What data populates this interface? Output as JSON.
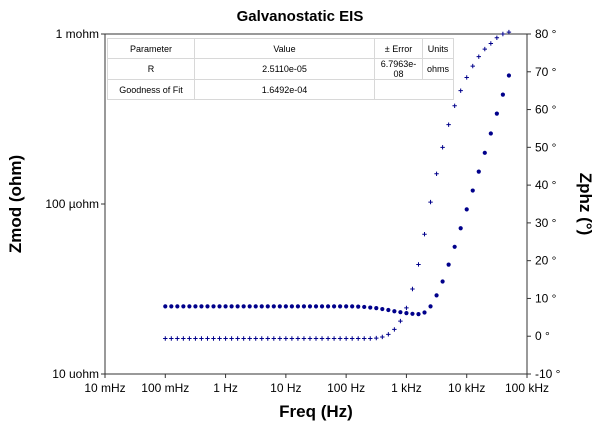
{
  "chart_data": {
    "type": "scatter",
    "title": "Galvanostatic EIS",
    "xlabel": "Freq (Hz)",
    "ylabel": "Zmod (ohm)",
    "y2label": "Zphz (°)",
    "x_scale": "log",
    "y_scale": "log",
    "y2_scale": "linear",
    "xlim": [
      0.01,
      100000
    ],
    "ylim": [
      1e-05,
      0.001
    ],
    "y2lim": [
      -10,
      80
    ],
    "x_ticks": [
      "10 mHz",
      "100 mHz",
      "1 Hz",
      "10 Hz",
      "100 Hz",
      "1 kHz",
      "10 kHz",
      "100 kHz"
    ],
    "y_ticks": [
      "10 uohm",
      "100 µohm",
      "1 mohm"
    ],
    "y2_ticks": [
      "-10 °",
      "0 °",
      "10 °",
      "20 °",
      "30 °",
      "40 °",
      "50 °",
      "60 °",
      "70 °",
      "80 °"
    ],
    "grid": false,
    "color": "#00008b",
    "x": [
      0.1,
      0.1259,
      0.1585,
      0.1995,
      0.2512,
      0.3162,
      0.3981,
      0.5012,
      0.631,
      0.7943,
      1,
      1.259,
      1.585,
      1.995,
      2.512,
      3.162,
      3.981,
      5.012,
      6.31,
      7.943,
      10,
      12.59,
      15.85,
      19.95,
      25.12,
      31.62,
      39.81,
      50.12,
      63.1,
      79.43,
      100,
      125.9,
      158.5,
      199.5,
      251.2,
      316.2,
      398.1,
      501.2,
      631,
      794.3,
      1000,
      1259,
      1585,
      1995,
      2512,
      3162,
      3981,
      5012,
      6310,
      7943,
      10000,
      12590,
      15850,
      19950,
      25120,
      31620,
      39810,
      50120
    ],
    "series": [
      {
        "marker": "dot",
        "axis": "left",
        "values": [
          2.5e-05,
          2.5e-05,
          2.5e-05,
          2.5e-05,
          2.5e-05,
          2.5e-05,
          2.5e-05,
          2.5e-05,
          2.5e-05,
          2.5e-05,
          2.5e-05,
          2.5e-05,
          2.5e-05,
          2.5e-05,
          2.5e-05,
          2.5e-05,
          2.5e-05,
          2.5e-05,
          2.5e-05,
          2.5e-05,
          2.5e-05,
          2.5e-05,
          2.5e-05,
          2.5e-05,
          2.5e-05,
          2.5e-05,
          2.5e-05,
          2.5e-05,
          2.5e-05,
          2.5e-05,
          2.5e-05,
          2.5e-05,
          2.49e-05,
          2.48e-05,
          2.46e-05,
          2.44e-05,
          2.41e-05,
          2.38e-05,
          2.34e-05,
          2.31e-05,
          2.28e-05,
          2.26e-05,
          2.25e-05,
          2.3e-05,
          2.5e-05,
          2.9e-05,
          3.5e-05,
          4.4e-05,
          5.6e-05,
          7.2e-05,
          9.3e-05,
          0.00012,
          0.000155,
          0.0002,
          0.00026,
          0.00034,
          0.00044,
          0.00057
        ]
      },
      {
        "marker": "plus",
        "axis": "right",
        "values": [
          -0.6,
          -0.6,
          -0.6,
          -0.6,
          -0.6,
          -0.6,
          -0.6,
          -0.6,
          -0.6,
          -0.6,
          -0.6,
          -0.6,
          -0.6,
          -0.6,
          -0.6,
          -0.6,
          -0.6,
          -0.6,
          -0.6,
          -0.6,
          -0.6,
          -0.6,
          -0.6,
          -0.6,
          -0.6,
          -0.6,
          -0.6,
          -0.6,
          -0.6,
          -0.6,
          -0.6,
          -0.6,
          -0.6,
          -0.6,
          -0.6,
          -0.5,
          -0.2,
          0.5,
          1.8,
          4,
          7.5,
          12.5,
          19,
          27,
          35.5,
          43,
          50,
          56,
          61,
          65,
          68.5,
          71.5,
          74,
          76,
          77.5,
          79,
          80,
          80.5
        ]
      }
    ]
  },
  "fit_table": {
    "headers": [
      "Parameter",
      "Value",
      "± Error",
      "Units"
    ],
    "rows": [
      [
        "R",
        "2.5110e-05",
        "6.7963e-08",
        "ohms"
      ]
    ],
    "gof_label": "Goodness of Fit",
    "gof_value": "1.6492e-04"
  }
}
